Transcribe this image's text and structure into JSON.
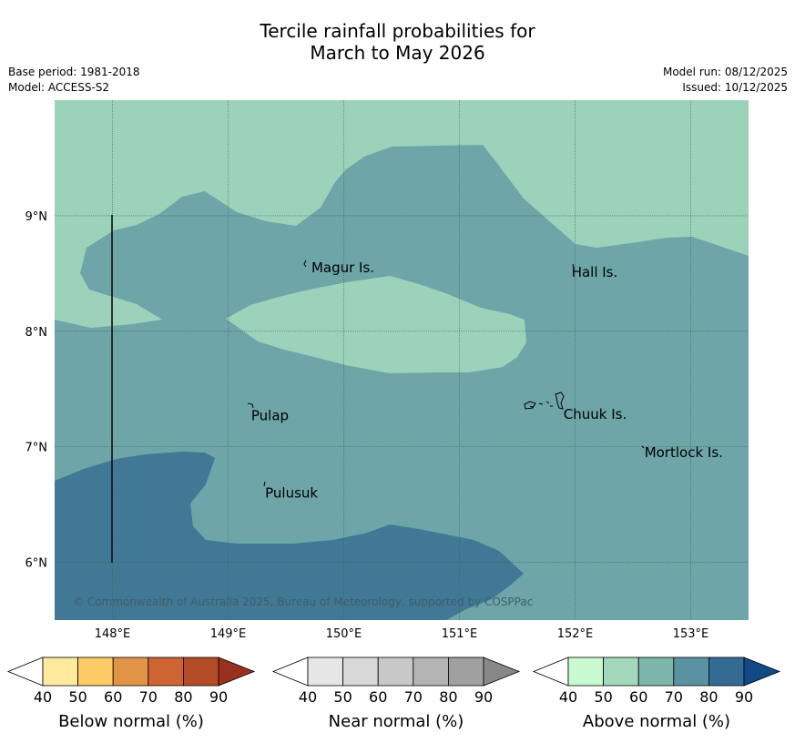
{
  "title": {
    "line1": "Tercile rainfall probabilities for",
    "line2": "March to May 2026"
  },
  "meta": {
    "base_period": "Base period: 1981-2018",
    "model": "Model: ACCESS-S2",
    "model_run": "Model run: 08/12/2025",
    "issued": "Issued: 10/12/2025"
  },
  "map": {
    "lon_range": [
      147.5,
      153.5
    ],
    "lat_range": [
      5.5,
      10.0
    ],
    "lon_ticks": [
      {
        "value": 148,
        "label": "148°E"
      },
      {
        "value": 149,
        "label": "149°E"
      },
      {
        "value": 150,
        "label": "150°E"
      },
      {
        "value": 151,
        "label": "151°E"
      },
      {
        "value": 152,
        "label": "152°E"
      },
      {
        "value": 153,
        "label": "153°E"
      }
    ],
    "lat_ticks": [
      {
        "value": 9,
        "label": "9°N"
      },
      {
        "value": 8,
        "label": "8°N"
      },
      {
        "value": 7,
        "label": "7°N"
      },
      {
        "value": 6,
        "label": "6°N"
      }
    ],
    "colors": {
      "above_60": "#9dd2ba",
      "above_70": "#6ea5a9",
      "above_80": "#417895"
    },
    "places": [
      {
        "name": "Magur Is.",
        "lon": 149.72,
        "lat": 8.55
      },
      {
        "name": "Hall Is.",
        "lon": 151.97,
        "lat": 8.51
      },
      {
        "name": "Pulap",
        "lon": 149.2,
        "lat": 7.27
      },
      {
        "name": "Chuuk Is.",
        "lon": 151.9,
        "lat": 7.28
      },
      {
        "name": "Mortlock Is.",
        "lon": 152.6,
        "lat": 6.95
      },
      {
        "name": "Pulusuk",
        "lon": 149.32,
        "lat": 6.6
      }
    ],
    "copyright": "© Commonwealth of Australia 2025, Bureau of Meteorology, supported by COSPPac"
  },
  "legends": [
    {
      "id": "below",
      "title": "Below normal (%)",
      "labels": [
        "40",
        "50",
        "60",
        "70",
        "80",
        "90"
      ],
      "colors": [
        "#ffffff",
        "#ffeaa0",
        "#fdca65",
        "#e19446",
        "#cd6532",
        "#b34c26",
        "#98321e"
      ]
    },
    {
      "id": "near",
      "title": "Near normal (%)",
      "labels": [
        "40",
        "50",
        "60",
        "70",
        "80",
        "90"
      ],
      "colors": [
        "#ffffff",
        "#e6e6e6",
        "#d8d8d8",
        "#c8c8c8",
        "#b4b4b4",
        "#a0a0a0",
        "#888888"
      ]
    },
    {
      "id": "above",
      "title": "Above normal (%)",
      "labels": [
        "40",
        "50",
        "60",
        "70",
        "80",
        "90"
      ],
      "colors": [
        "#ffffff",
        "#c9f9d0",
        "#a3d8bd",
        "#7db5aa",
        "#5b92a2",
        "#356a92",
        "#0f4a84"
      ]
    }
  ]
}
